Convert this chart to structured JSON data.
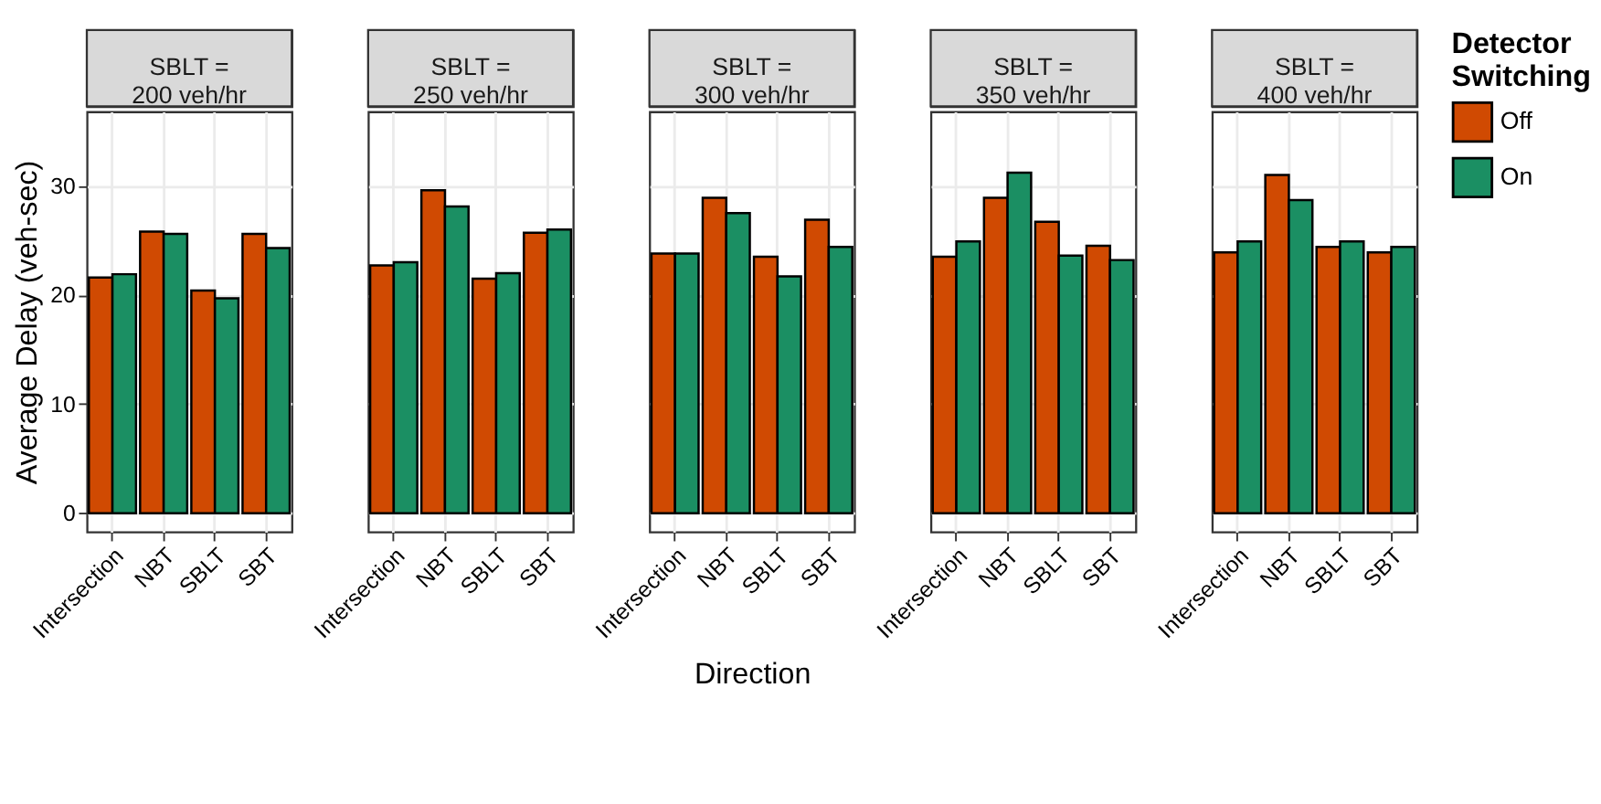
{
  "chart_data": [
    {
      "type": "bar",
      "title": "SBLT =\n200 veh/hr",
      "legend_title": "Detector\nSwitching",
      "legend": "right",
      "ylabel": "Average Delay (veh-sec)",
      "categories": [
        "Intersection",
        "NBT",
        "SBLT",
        "SBT"
      ],
      "ylim": [
        -1.7,
        36.8
      ],
      "yticks": [
        0,
        10,
        20,
        30
      ],
      "grid": true,
      "tick_labels": true,
      "series": [
        {
          "name": "Off",
          "color": "#d04a02",
          "values": [
            21.6,
            25.8,
            20.4,
            25.6
          ]
        },
        {
          "name": "On",
          "color": "#1b8f63",
          "values": [
            21.9,
            25.6,
            19.7,
            24.3
          ]
        }
      ]
    },
    {
      "type": "bar",
      "title": "SBLT =\n250 veh/hr",
      "categories": [
        "Intersection",
        "NBT",
        "SBLT",
        "SBT"
      ],
      "ylim": [
        -1.7,
        36.8
      ],
      "yticks": [
        0,
        10,
        20,
        30
      ],
      "grid": true,
      "tick_labels": "x",
      "series": [
        {
          "name": "Off",
          "color": "#d04a02",
          "values": [
            22.7,
            29.6,
            21.5,
            25.7
          ]
        },
        {
          "name": "On",
          "color": "#1b8f63",
          "values": [
            23.0,
            28.1,
            22.0,
            26.0
          ]
        }
      ]
    },
    {
      "type": "bar",
      "title": "SBLT =\n300 veh/hr",
      "xlabel": "Direction",
      "categories": [
        "Intersection",
        "NBT",
        "SBLT",
        "SBT"
      ],
      "ylim": [
        -1.7,
        36.8
      ],
      "yticks": [
        0,
        10,
        20,
        30
      ],
      "grid": true,
      "tick_labels": "x",
      "series": [
        {
          "name": "Off",
          "color": "#d04a02",
          "values": [
            23.8,
            28.9,
            23.5,
            26.9
          ]
        },
        {
          "name": "On",
          "color": "#1b8f63",
          "values": [
            23.8,
            27.5,
            21.7,
            24.4
          ]
        }
      ]
    },
    {
      "type": "bar",
      "title": "SBLT =\n350 veh/hr",
      "categories": [
        "Intersection",
        "NBT",
        "SBLT",
        "SBT"
      ],
      "ylim": [
        -1.7,
        36.8
      ],
      "yticks": [
        0,
        10,
        20,
        30
      ],
      "grid": true,
      "tick_labels": "x",
      "series": [
        {
          "name": "Off",
          "color": "#d04a02",
          "values": [
            23.5,
            28.9,
            26.7,
            24.5
          ]
        },
        {
          "name": "On",
          "color": "#1b8f63",
          "values": [
            24.9,
            31.2,
            23.6,
            23.2
          ]
        }
      ]
    },
    {
      "type": "bar",
      "title": "SBLT =\n400 veh/hr",
      "categories": [
        "Intersection",
        "NBT",
        "SBLT",
        "SBT"
      ],
      "ylim": [
        -1.7,
        36.8
      ],
      "yticks": [
        0,
        10,
        20,
        30
      ],
      "grid": true,
      "tick_labels": "x",
      "series": [
        {
          "name": "Off",
          "color": "#d04a02",
          "values": [
            23.9,
            31.0,
            24.4,
            23.9
          ]
        },
        {
          "name": "On",
          "color": "#1b8f63",
          "values": [
            24.9,
            28.7,
            24.9,
            24.4
          ]
        }
      ]
    }
  ]
}
